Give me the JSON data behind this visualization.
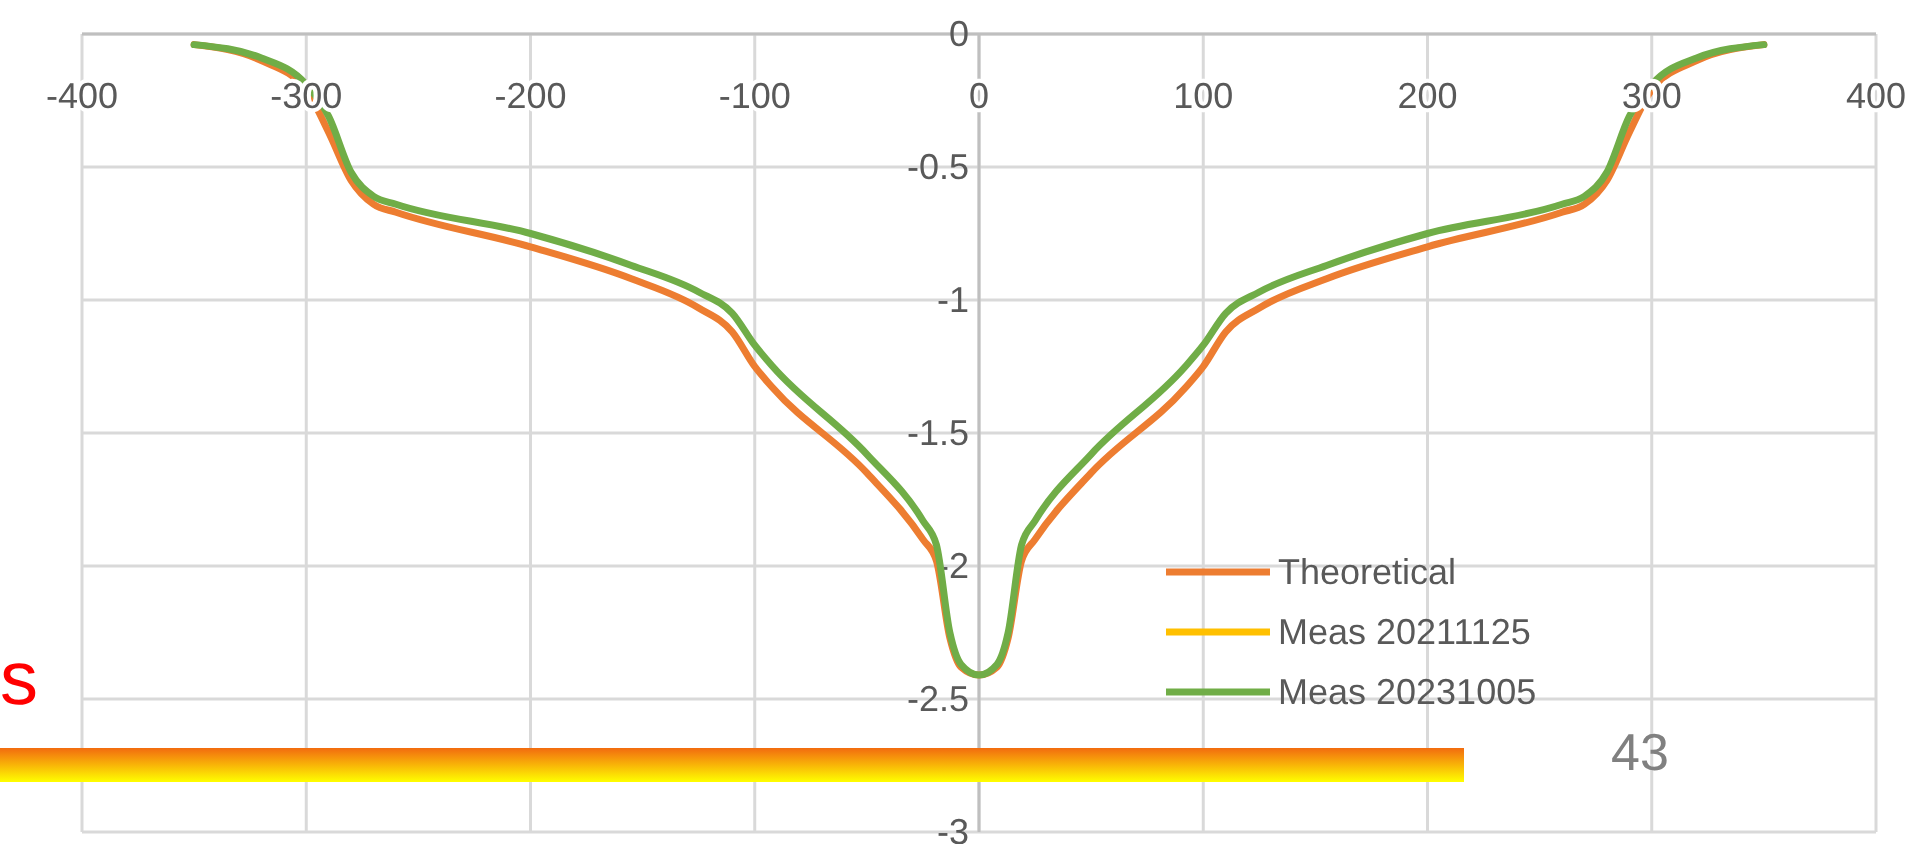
{
  "chart_data": {
    "type": "line",
    "x": [
      -350,
      -320,
      -300,
      -290,
      -280,
      -270,
      -260,
      -200,
      -155,
      -125,
      -110,
      -100,
      -92,
      -50,
      -25,
      -19,
      -13,
      -8,
      0,
      8,
      13,
      19,
      25,
      50,
      92,
      100,
      110,
      125,
      155,
      200,
      260,
      270,
      280,
      290,
      300,
      320,
      350
    ],
    "series": [
      {
        "name": "Theoretical",
        "color": "#ed7d31",
        "values": [
          -0.04,
          -0.1,
          -0.21,
          -0.37,
          -0.55,
          -0.64,
          -0.67,
          -0.8,
          -0.92,
          -1.03,
          -1.12,
          -1.25,
          -1.33,
          -1.65,
          -1.9,
          -1.98,
          -2.27,
          -2.38,
          -2.41,
          -2.38,
          -2.27,
          -1.98,
          -1.9,
          -1.65,
          -1.33,
          -1.25,
          -1.12,
          -1.03,
          -0.92,
          -0.8,
          -0.67,
          -0.64,
          -0.55,
          -0.37,
          -0.21,
          -0.1,
          -0.04
        ]
      },
      {
        "name": "Meas 20211125",
        "color": "#ffc000",
        "values": [
          null,
          null,
          null,
          null,
          null,
          null,
          null,
          null,
          null,
          null,
          null,
          null,
          null,
          null,
          null,
          null,
          null,
          null,
          null,
          null,
          null,
          null,
          null,
          null,
          null,
          null,
          null,
          null,
          null,
          null,
          null,
          null,
          null,
          null,
          null,
          null,
          null
        ]
      },
      {
        "name": "Meas 20231005",
        "color": "#70ad47",
        "values": [
          -0.04,
          -0.09,
          -0.19,
          -0.31,
          -0.52,
          -0.61,
          -0.64,
          -0.75,
          -0.87,
          -0.97,
          -1.05,
          -1.17,
          -1.25,
          -1.58,
          -1.83,
          -1.92,
          -2.25,
          -2.37,
          -2.41,
          -2.37,
          -2.25,
          -1.92,
          -1.83,
          -1.58,
          -1.25,
          -1.17,
          -1.05,
          -0.97,
          -0.87,
          -0.75,
          -0.64,
          -0.61,
          -0.52,
          -0.31,
          -0.19,
          -0.09,
          -0.04
        ]
      }
    ],
    "xlim": [
      -400,
      400
    ],
    "xticks": [
      -400,
      -300,
      -200,
      -100,
      0,
      100,
      200,
      300,
      400
    ],
    "ylim": [
      -3,
      0
    ],
    "yticks": [
      -3,
      -2.5,
      -2,
      -1.5,
      -1,
      -0.5,
      0
    ],
    "grid": true,
    "legend": "bottom",
    "marker": "none",
    "line_style": "solid",
    "annotations": [
      "s",
      "43"
    ]
  }
}
